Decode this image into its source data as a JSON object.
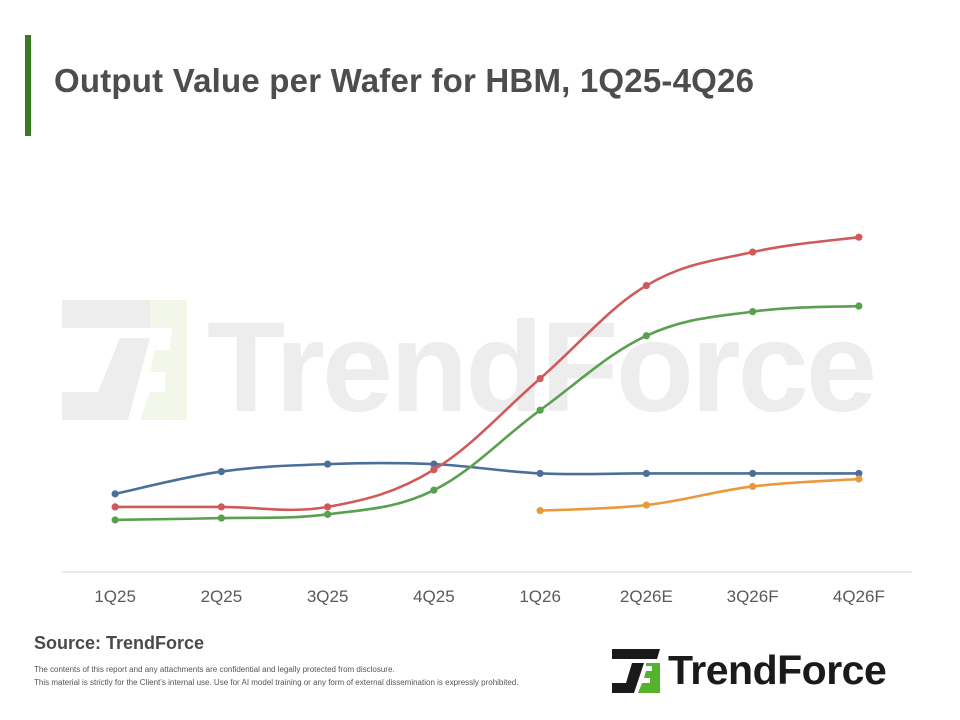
{
  "page": {
    "title": "Output Value per Wafer for HBM, 1Q25-4Q26",
    "source": "Source: TrendForce",
    "disclaimer_line1": "The contents of this report and any attachments are confidential and legally protected from disclosure.",
    "disclaimer_line2": "This material is strictly for the Client’s internal use. Use for AI model training or any form of external dissemination is expressly prohibited.",
    "logo_text": "TrendForce",
    "watermark_text": "TrendForce",
    "colors": {
      "accent": "#3a7a1e",
      "logo_green": "#55b22d",
      "axis": "#d9d9d9"
    }
  },
  "chart_data": {
    "type": "line",
    "title": "Output Value per Wafer for HBM, 1Q25-4Q26",
    "xlabel": "",
    "ylabel": "",
    "y_axis_shown": false,
    "grid": false,
    "legend": "none",
    "ylim": [
      0,
      100
    ],
    "categories": [
      "1Q25",
      "2Q25",
      "3Q25",
      "4Q25",
      "1Q26",
      "2Q26E",
      "3Q26F",
      "4Q26F"
    ],
    "series": [
      {
        "color": "#4a6f9a",
        "values": [
          21,
          27,
          29,
          29,
          26.5,
          26.5,
          26.5,
          26.5
        ]
      },
      {
        "color": "#d05a5a",
        "values": [
          17.5,
          17.5,
          17.5,
          27.5,
          52,
          77,
          86,
          90
        ]
      },
      {
        "color": "#5aa050",
        "values": [
          14,
          14.5,
          15.5,
          22,
          43.5,
          63.5,
          70,
          71.5
        ]
      },
      {
        "color": "#e89a3c",
        "values": [
          null,
          null,
          null,
          null,
          16.5,
          18,
          23,
          25
        ]
      }
    ]
  }
}
